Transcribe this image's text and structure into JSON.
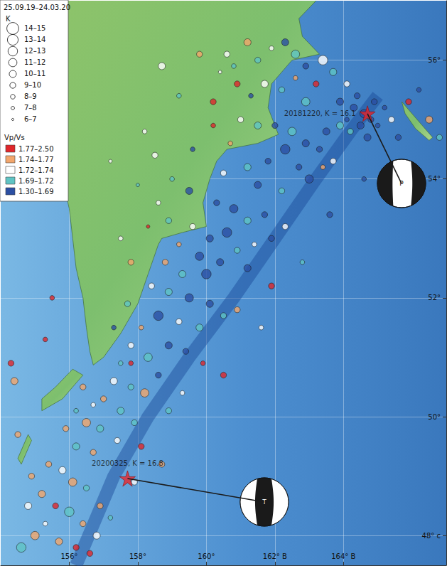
{
  "chart_data": {
    "type": "scatter",
    "title": "25.09.19–24.03.20",
    "xlim": [
      154,
      167
    ],
    "ylim": [
      47.5,
      57
    ],
    "xticks": [
      {
        "value": 156,
        "label": "156°"
      },
      {
        "value": 158,
        "label": "158°"
      },
      {
        "value": 160,
        "label": "160°"
      },
      {
        "value": 162,
        "label": "162° В"
      },
      {
        "value": 164,
        "label": "164° В"
      }
    ],
    "yticks": [
      {
        "value": 48,
        "label": "48° с"
      },
      {
        "value": 50,
        "label": "50°"
      },
      {
        "value": 52,
        "label": "52°"
      },
      {
        "value": 54,
        "label": "54°"
      },
      {
        "value": 56,
        "label": "56°"
      }
    ],
    "grid": true,
    "size_legend_title": "K",
    "size_classes": [
      {
        "label": "14–15",
        "min": 14,
        "max": 15
      },
      {
        "label": "13–14",
        "min": 13,
        "max": 14
      },
      {
        "label": "12–13",
        "min": 12,
        "max": 13
      },
      {
        "label": "11–12",
        "min": 11,
        "max": 12
      },
      {
        "label": "10–11",
        "min": 10,
        "max": 11
      },
      {
        "label": "9–10",
        "min": 9,
        "max": 10
      },
      {
        "label": "8–9",
        "min": 8,
        "max": 9
      },
      {
        "label": "7–8",
        "min": 7,
        "max": 8
      },
      {
        "label": "6–7",
        "min": 6,
        "max": 7
      }
    ],
    "color_legend_title": "Vp/Vs",
    "color_classes": [
      {
        "label": "1.77–2.50",
        "min": 1.77,
        "max": 2.5,
        "color": "#e0262a"
      },
      {
        "label": "1.74–1.77",
        "min": 1.74,
        "max": 1.77,
        "color": "#f3a66c"
      },
      {
        "label": "1.72–1.74",
        "min": 1.72,
        "max": 1.74,
        "color": "#ffffff"
      },
      {
        "label": "1.69–1.72",
        "min": 1.69,
        "max": 1.72,
        "color": "#5fc4c4"
      },
      {
        "label": "1.30–1.69",
        "min": 1.3,
        "max": 1.69,
        "color": "#2b4fa3"
      }
    ],
    "points": [
      [
        160.6,
        56.1,
        9,
        1.73
      ],
      [
        160.8,
        55.9,
        8,
        1.71
      ],
      [
        161.2,
        56.3,
        10,
        1.75
      ],
      [
        161.5,
        56.0,
        9,
        1.7
      ],
      [
        161.9,
        56.2,
        8,
        1.72
      ],
      [
        162.3,
        56.3,
        10,
        1.68
      ],
      [
        162.6,
        56.1,
        11,
        1.71
      ],
      [
        162.9,
        55.9,
        9,
        1.66
      ],
      [
        163.4,
        56.0,
        12,
        1.73
      ],
      [
        163.7,
        55.8,
        10,
        1.69
      ],
      [
        163.2,
        55.6,
        9,
        1.8
      ],
      [
        162.6,
        55.7,
        8,
        1.75
      ],
      [
        162.2,
        55.5,
        9,
        1.71
      ],
      [
        161.7,
        55.6,
        10,
        1.73
      ],
      [
        161.3,
        55.4,
        8,
        1.67
      ],
      [
        160.9,
        55.6,
        9,
        1.78
      ],
      [
        160.4,
        55.8,
        7,
        1.73
      ],
      [
        164.1,
        55.6,
        9,
        1.72
      ],
      [
        163.9,
        55.3,
        10,
        1.66
      ],
      [
        162.9,
        55.3,
        11,
        1.7
      ],
      [
        164.3,
        55.2,
        10,
        1.62
      ],
      [
        164.6,
        55.1,
        11,
        1.6
      ],
      [
        164.8,
        55.0,
        9,
        1.65
      ],
      [
        164.5,
        54.9,
        10,
        1.58
      ],
      [
        164.9,
        55.3,
        9,
        1.66
      ],
      [
        165.2,
        55.2,
        8,
        1.63
      ],
      [
        164.2,
        54.8,
        9,
        1.71
      ],
      [
        164.7,
        54.7,
        10,
        1.64
      ],
      [
        165.0,
        54.9,
        8,
        1.6
      ],
      [
        164.4,
        55.4,
        9,
        1.67
      ],
      [
        163.9,
        54.9,
        10,
        1.69
      ],
      [
        165.4,
        55.0,
        9,
        1.73
      ],
      [
        165.9,
        55.3,
        9,
        1.8
      ],
      [
        166.5,
        55.0,
        10,
        1.74
      ],
      [
        166.8,
        54.7,
        9,
        1.71
      ],
      [
        166.2,
        55.5,
        8,
        1.68
      ],
      [
        165.6,
        54.7,
        9,
        1.62
      ],
      [
        164.1,
        55.0,
        8,
        1.65
      ],
      [
        161.0,
        55.0,
        9,
        1.73
      ],
      [
        161.5,
        54.9,
        10,
        1.7
      ],
      [
        162.0,
        54.9,
        9,
        1.66
      ],
      [
        162.5,
        54.8,
        11,
        1.69
      ],
      [
        162.9,
        54.6,
        10,
        1.65
      ],
      [
        163.3,
        54.5,
        9,
        1.62
      ],
      [
        163.5,
        54.8,
        10,
        1.66
      ],
      [
        162.3,
        54.5,
        12,
        1.6
      ],
      [
        161.8,
        54.3,
        9,
        1.67
      ],
      [
        161.2,
        54.2,
        10,
        1.71
      ],
      [
        160.7,
        54.6,
        8,
        1.74
      ],
      [
        162.7,
        54.2,
        9,
        1.64
      ],
      [
        163.0,
        54.0,
        11,
        1.68
      ],
      [
        163.4,
        54.2,
        8,
        1.75
      ],
      [
        161.5,
        53.9,
        10,
        1.62
      ],
      [
        162.2,
        53.8,
        9,
        1.7
      ],
      [
        160.5,
        54.1,
        9,
        1.73
      ],
      [
        160.2,
        54.9,
        8,
        1.78
      ],
      [
        163.7,
        54.3,
        9,
        1.72
      ],
      [
        159.5,
        53.8,
        10,
        1.66
      ],
      [
        160.3,
        53.6,
        9,
        1.6
      ],
      [
        160.8,
        53.5,
        11,
        1.64
      ],
      [
        161.2,
        53.3,
        10,
        1.7
      ],
      [
        161.7,
        53.4,
        9,
        1.67
      ],
      [
        160.6,
        53.1,
        12,
        1.62
      ],
      [
        160.1,
        53.0,
        10,
        1.68
      ],
      [
        159.6,
        53.2,
        9,
        1.72
      ],
      [
        159.2,
        52.9,
        8,
        1.75
      ],
      [
        159.8,
        52.7,
        11,
        1.63
      ],
      [
        160.4,
        52.6,
        10,
        1.66
      ],
      [
        160.9,
        52.8,
        9,
        1.71
      ],
      [
        161.4,
        52.9,
        8,
        1.73
      ],
      [
        161.9,
        53.0,
        9,
        1.65
      ],
      [
        158.9,
        53.3,
        9,
        1.7
      ],
      [
        158.6,
        53.6,
        8,
        1.73
      ],
      [
        158.3,
        53.2,
        7,
        1.79
      ],
      [
        160.0,
        52.4,
        12,
        1.61
      ],
      [
        159.3,
        52.4,
        10,
        1.69
      ],
      [
        158.8,
        52.6,
        9,
        1.74
      ],
      [
        161.2,
        52.5,
        10,
        1.64
      ],
      [
        162.3,
        53.2,
        9,
        1.72
      ],
      [
        159.0,
        54.0,
        8,
        1.71
      ],
      [
        158.5,
        54.4,
        9,
        1.73
      ],
      [
        159.6,
        54.5,
        8,
        1.66
      ],
      [
        158.4,
        52.2,
        9,
        1.72
      ],
      [
        158.9,
        52.1,
        10,
        1.7
      ],
      [
        159.5,
        52.0,
        11,
        1.66
      ],
      [
        160.1,
        51.9,
        10,
        1.63
      ],
      [
        160.5,
        51.7,
        9,
        1.69
      ],
      [
        159.8,
        51.5,
        10,
        1.71
      ],
      [
        159.2,
        51.6,
        9,
        1.73
      ],
      [
        158.6,
        51.7,
        12,
        1.67
      ],
      [
        158.1,
        51.5,
        8,
        1.76
      ],
      [
        157.7,
        51.9,
        9,
        1.71
      ],
      [
        158.9,
        51.2,
        10,
        1.65
      ],
      [
        159.4,
        51.1,
        9,
        1.6
      ],
      [
        158.3,
        51.0,
        11,
        1.69
      ],
      [
        157.8,
        51.2,
        9,
        1.73
      ],
      [
        157.5,
        50.9,
        8,
        1.71
      ],
      [
        160.9,
        51.8,
        9,
        1.74
      ],
      [
        159.9,
        50.9,
        8,
        1.79
      ],
      [
        157.3,
        51.5,
        8,
        1.68
      ],
      [
        157.3,
        50.6,
        10,
        1.72
      ],
      [
        157.8,
        50.5,
        9,
        1.7
      ],
      [
        158.2,
        50.4,
        11,
        1.74
      ],
      [
        158.6,
        50.7,
        9,
        1.68
      ],
      [
        157.0,
        50.3,
        9,
        1.75
      ],
      [
        157.5,
        50.1,
        10,
        1.71
      ],
      [
        157.9,
        49.9,
        9,
        1.69
      ],
      [
        156.7,
        50.2,
        8,
        1.73
      ],
      [
        156.4,
        50.5,
        9,
        1.76
      ],
      [
        156.9,
        49.8,
        10,
        1.7
      ],
      [
        157.4,
        49.6,
        9,
        1.72
      ],
      [
        156.5,
        49.9,
        11,
        1.75
      ],
      [
        156.2,
        50.1,
        8,
        1.71
      ],
      [
        155.9,
        49.8,
        9,
        1.74
      ],
      [
        156.2,
        49.5,
        10,
        1.69
      ],
      [
        156.7,
        49.4,
        9,
        1.76
      ],
      [
        157.8,
        50.9,
        8,
        1.8
      ],
      [
        158.9,
        50.1,
        9,
        1.71
      ],
      [
        159.3,
        50.4,
        8,
        1.72
      ],
      [
        158.1,
        49.5,
        9,
        1.83
      ],
      [
        158.7,
        49.2,
        9,
        1.74
      ],
      [
        155.4,
        49.2,
        9,
        1.75
      ],
      [
        155.8,
        49.1,
        10,
        1.72
      ],
      [
        156.1,
        48.9,
        11,
        1.76
      ],
      [
        156.5,
        48.8,
        9,
        1.71
      ],
      [
        155.2,
        48.7,
        10,
        1.74
      ],
      [
        155.6,
        48.5,
        9,
        1.78
      ],
      [
        156.0,
        48.4,
        12,
        1.7
      ],
      [
        156.4,
        48.2,
        9,
        1.76
      ],
      [
        155.3,
        48.2,
        8,
        1.73
      ],
      [
        155.7,
        47.9,
        10,
        1.75
      ],
      [
        156.2,
        47.8,
        9,
        1.77
      ],
      [
        156.8,
        48.0,
        10,
        1.72
      ],
      [
        156.9,
        48.5,
        9,
        1.74
      ],
      [
        155.0,
        48.0,
        11,
        1.76
      ],
      [
        154.8,
        48.5,
        10,
        1.73
      ],
      [
        154.6,
        47.8,
        12,
        1.71
      ],
      [
        156.6,
        47.7,
        9,
        1.8
      ],
      [
        157.2,
        48.3,
        8,
        1.69
      ],
      [
        157.9,
        48.9,
        9,
        1.72
      ],
      [
        154.9,
        49.0,
        9,
        1.75
      ],
      [
        154.3,
        50.9,
        9,
        1.82
      ],
      [
        155.3,
        51.3,
        8,
        1.8
      ],
      [
        154.5,
        49.7,
        9,
        1.75
      ],
      [
        154.4,
        50.6,
        10,
        1.75
      ],
      [
        155.5,
        52.0,
        8,
        1.79
      ],
      [
        157.5,
        53.0,
        8,
        1.72
      ],
      [
        157.8,
        52.6,
        9,
        1.74
      ],
      [
        158.0,
        53.9,
        7,
        1.7
      ],
      [
        158.2,
        54.8,
        8,
        1.73
      ],
      [
        159.2,
        55.4,
        8,
        1.71
      ],
      [
        159.8,
        56.1,
        9,
        1.74
      ],
      [
        157.2,
        54.3,
        7,
        1.73
      ],
      [
        158.7,
        55.9,
        10,
        1.72
      ],
      [
        160.2,
        55.3,
        9,
        1.8
      ],
      [
        161.9,
        52.2,
        9,
        1.8
      ],
      [
        162.8,
        52.6,
        8,
        1.71
      ],
      [
        163.6,
        53.4,
        9,
        1.68
      ],
      [
        160.5,
        50.7,
        9,
        1.81
      ],
      [
        161.6,
        51.5,
        8,
        1.72
      ],
      [
        164.6,
        54.0,
        8,
        1.67
      ]
    ],
    "events": [
      {
        "label": "20181220, K = 16.1",
        "lon": 164.7,
        "lat": 55.1,
        "mechanism": "P"
      },
      {
        "label": "20200325, K = 16.8",
        "lon": 157.7,
        "lat": 48.96,
        "mechanism": "T"
      }
    ],
    "land": [
      [
        [
          155.9,
          57.5
        ],
        [
          155.8,
          56.5
        ],
        [
          155.6,
          56.0
        ],
        [
          155.6,
          55.5
        ],
        [
          155.6,
          55.0
        ],
        [
          155.7,
          54.5
        ],
        [
          155.8,
          54.0
        ],
        [
          156.0,
          53.5
        ],
        [
          156.1,
          53.0
        ],
        [
          156.2,
          52.5
        ],
        [
          156.4,
          52.0
        ],
        [
          156.5,
          51.5
        ],
        [
          156.6,
          51.1
        ],
        [
          156.7,
          50.87
        ],
        [
          157.0,
          51.0
        ],
        [
          157.5,
          51.4
        ],
        [
          158.0,
          51.9
        ],
        [
          158.3,
          52.4
        ],
        [
          158.6,
          52.9
        ],
        [
          158.7,
          53.0
        ],
        [
          159.3,
          53.1
        ],
        [
          160.0,
          53.2
        ],
        [
          159.9,
          53.6
        ],
        [
          160.1,
          54.0
        ],
        [
          160.3,
          54.3
        ],
        [
          160.6,
          54.5
        ],
        [
          161.5,
          54.6
        ],
        [
          162.1,
          54.75
        ],
        [
          161.8,
          55.2
        ],
        [
          161.9,
          55.6
        ],
        [
          162.5,
          56.0
        ],
        [
          163.3,
          56.1
        ],
        [
          162.8,
          56.4
        ],
        [
          162.7,
          56.7
        ],
        [
          163.2,
          57.0
        ],
        [
          163.0,
          57.5
        ]
      ],
      [
        [
          155.2,
          50.1
        ],
        [
          155.8,
          50.3
        ],
        [
          156.4,
          50.7
        ],
        [
          156.1,
          50.8
        ],
        [
          155.6,
          50.5
        ],
        [
          155.2,
          50.3
        ]
      ],
      [
        [
          154.6,
          49.2
        ],
        [
          154.9,
          49.6
        ],
        [
          154.8,
          49.7
        ],
        [
          154.5,
          49.3
        ]
      ],
      [
        [
          165.7,
          55.3
        ],
        [
          166.3,
          54.9
        ],
        [
          166.6,
          54.7
        ],
        [
          166.5,
          54.65
        ],
        [
          166.1,
          54.85
        ],
        [
          165.8,
          55.1
        ]
      ]
    ],
    "trench": [
      [
        156.2,
        47.5
      ],
      [
        157.3,
        49.0
      ],
      [
        158.3,
        50.0
      ],
      [
        159.5,
        51.0
      ],
      [
        160.8,
        52.0
      ],
      [
        162.0,
        53.0
      ],
      [
        163.2,
        54.0
      ],
      [
        164.2,
        54.8
      ],
      [
        165.0,
        55.4
      ]
    ]
  }
}
